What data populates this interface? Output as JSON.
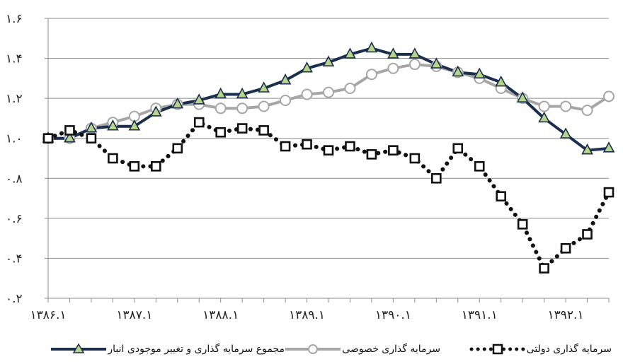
{
  "chart_data": {
    "type": "line",
    "x": [
      "1386.1",
      "1386.2",
      "1386.3",
      "1386.4",
      "1387.1",
      "1387.2",
      "1387.3",
      "1387.4",
      "1388.1",
      "1388.2",
      "1388.3",
      "1388.4",
      "1389.1",
      "1389.2",
      "1389.3",
      "1389.4",
      "1390.1",
      "1390.2",
      "1390.3",
      "1390.4",
      "1391.1",
      "1391.2",
      "1391.3",
      "1391.4",
      "1392.1",
      "1392.2",
      "1392.3"
    ],
    "x_tick_labels": [
      "۱۳۸۶.۱",
      "۱۳۸۷.۱",
      "۱۳۸۸.۱",
      "۱۳۸۹.۱",
      "۱۳۹۰.۱",
      "۱۳۹۱.۱",
      "۱۳۹۲.۱"
    ],
    "y_tick_labels": [
      "۰.۲",
      "۰.۴",
      "۰.۶",
      "۰.۸",
      "۱.۰",
      "۱.۲",
      "۱.۴",
      "۱.۶"
    ],
    "ylim": [
      0.2,
      1.6
    ],
    "y_ticks": [
      0.2,
      0.4,
      0.6,
      0.8,
      1.0,
      1.2,
      1.4,
      1.6
    ],
    "grid": true,
    "legend_position": "bottom",
    "series": [
      {
        "name": "مجموع سرمایه گذاری و تغییر موجودی انبار",
        "color": "#1a2e4e",
        "marker": "triangle",
        "marker_color": "#b8d48a",
        "values": [
          1.0,
          1.0,
          1.05,
          1.06,
          1.06,
          1.13,
          1.17,
          1.19,
          1.22,
          1.22,
          1.25,
          1.29,
          1.35,
          1.38,
          1.42,
          1.45,
          1.42,
          1.42,
          1.37,
          1.33,
          1.32,
          1.28,
          1.2,
          1.1,
          1.02,
          0.94,
          0.95
        ]
      },
      {
        "name": "سرمایه گذاری خصوصی",
        "color": "#a6a6a6",
        "marker": "circle",
        "marker_color": "#ffffff",
        "values": [
          1.0,
          1.0,
          1.05,
          1.08,
          1.11,
          1.15,
          1.17,
          1.17,
          1.15,
          1.15,
          1.16,
          1.19,
          1.22,
          1.23,
          1.25,
          1.32,
          1.35,
          1.37,
          1.36,
          1.33,
          1.3,
          1.25,
          1.2,
          1.16,
          1.16,
          1.14,
          1.21
        ]
      },
      {
        "name": "سرمایه گذاری دولتی",
        "color": "#111111",
        "marker": "square",
        "marker_color": "#ffffff",
        "values": [
          1.0,
          1.04,
          1.0,
          0.9,
          0.86,
          0.86,
          0.95,
          1.08,
          1.03,
          1.05,
          1.04,
          0.96,
          0.97,
          0.94,
          0.96,
          0.92,
          0.94,
          0.9,
          0.8,
          0.95,
          0.86,
          0.71,
          0.57,
          0.35,
          0.45,
          0.52,
          0.73
        ]
      }
    ]
  }
}
